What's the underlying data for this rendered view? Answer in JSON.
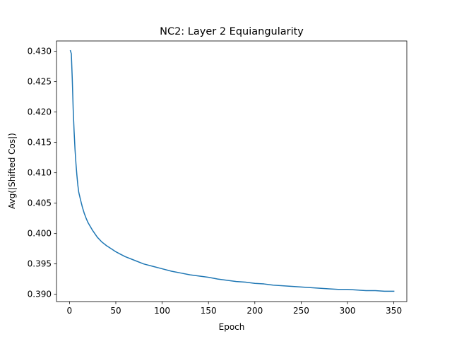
{
  "chart_data": {
    "type": "line",
    "title": "NC2: Layer 2 Equiangularity",
    "xlabel": "Epoch",
    "ylabel": "Avg(|Shifted Cos|)",
    "xlim": [
      -14,
      364
    ],
    "ylim": [
      0.3888,
      0.4317
    ],
    "xticks": [
      0,
      50,
      100,
      150,
      200,
      250,
      300,
      350
    ],
    "yticks": [
      0.39,
      0.395,
      0.4,
      0.405,
      0.41,
      0.415,
      0.42,
      0.425,
      0.43
    ],
    "xtick_labels": [
      "0",
      "50",
      "100",
      "150",
      "200",
      "250",
      "300",
      "350"
    ],
    "ytick_labels": [
      "0.390",
      "0.395",
      "0.400",
      "0.405",
      "0.410",
      "0.415",
      "0.420",
      "0.425",
      "0.430"
    ],
    "grid": false,
    "line_color": "#1f77b4",
    "series": [
      {
        "x": [
          1,
          2,
          3,
          4,
          5,
          6,
          7,
          8,
          9,
          10,
          12,
          14,
          16,
          18,
          20,
          25,
          30,
          35,
          40,
          45,
          50,
          55,
          60,
          70,
          80,
          90,
          100,
          110,
          120,
          130,
          140,
          150,
          160,
          170,
          180,
          190,
          200,
          210,
          220,
          230,
          240,
          250,
          260,
          270,
          280,
          290,
          300,
          310,
          320,
          330,
          340,
          350
        ],
        "y": [
          0.4301,
          0.4296,
          0.4255,
          0.4205,
          0.4168,
          0.4138,
          0.4115,
          0.4096,
          0.408,
          0.4068,
          0.4055,
          0.4043,
          0.4033,
          0.4025,
          0.4018,
          0.4005,
          0.3994,
          0.3986,
          0.398,
          0.3975,
          0.397,
          0.3966,
          0.3962,
          0.3956,
          0.395,
          0.3946,
          0.3942,
          0.3938,
          0.3935,
          0.3932,
          0.393,
          0.3928,
          0.3925,
          0.3923,
          0.3921,
          0.392,
          0.3918,
          0.3917,
          0.3915,
          0.3914,
          0.3913,
          0.3912,
          0.3911,
          0.391,
          0.3909,
          0.3908,
          0.3908,
          0.3907,
          0.3906,
          0.3906,
          0.3905,
          0.3905
        ]
      }
    ]
  }
}
